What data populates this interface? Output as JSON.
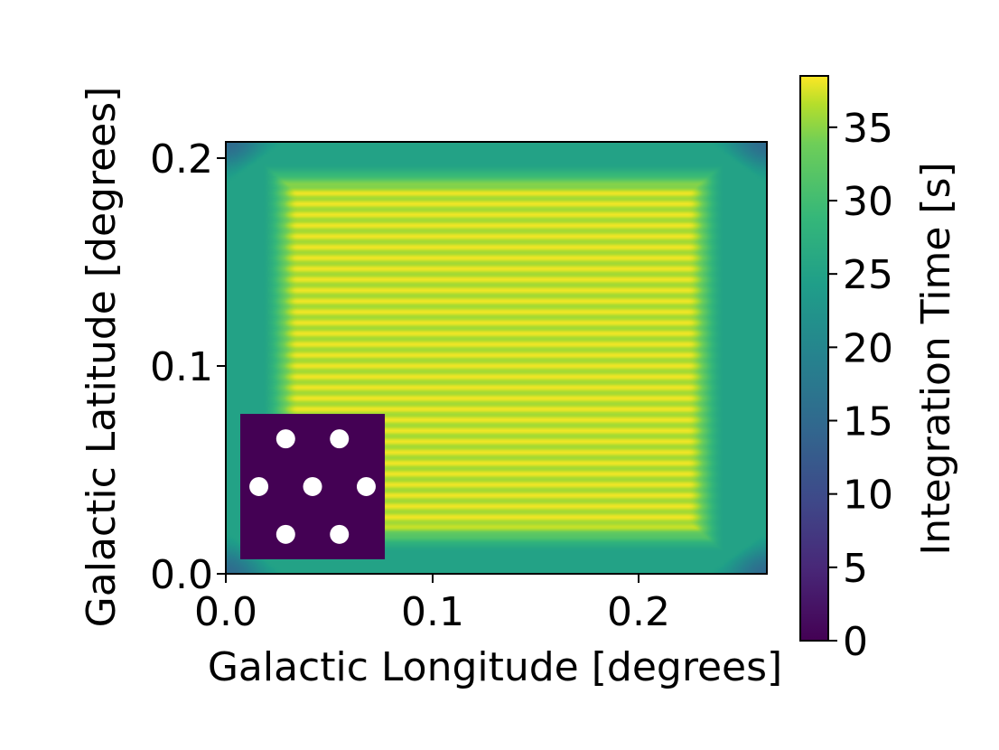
{
  "chart_data": {
    "type": "heatmap",
    "xlabel": "Galactic Longitude [degrees]",
    "ylabel": "Galactic Latitude [degrees]",
    "xlim": [
      0.0,
      0.262
    ],
    "ylim": [
      0.0,
      0.208
    ],
    "x_ticks": [
      0.0,
      0.1,
      0.2
    ],
    "y_ticks": [
      0.0,
      0.1,
      0.2
    ],
    "x_tick_labels": [
      "0.0",
      "0.1",
      "0.2"
    ],
    "y_tick_labels": [
      "0.0",
      "0.1",
      "0.2"
    ],
    "colormap": "viridis",
    "colorbar": {
      "label": "Integration Time [s]",
      "range": [
        0,
        38.5
      ],
      "ticks": [
        0,
        5,
        10,
        15,
        20,
        25,
        30,
        35
      ],
      "tick_labels": [
        "0",
        "5",
        "10",
        "15",
        "20",
        "25",
        "30",
        "35"
      ]
    },
    "field": {
      "plateau_value": 37,
      "plateau_x_range": [
        0.029,
        0.23
      ],
      "plateau_y_range": [
        0.02,
        0.188
      ],
      "edge_value": 25,
      "corner_value": 15,
      "stripe_period_y": 0.0052
    },
    "inset": {
      "x_range": [
        0.007,
        0.077
      ],
      "y_range": [
        0.007,
        0.077
      ],
      "background_value": 0,
      "dots": [
        {
          "x": 0.029,
          "y": 0.065
        },
        {
          "x": 0.055,
          "y": 0.065
        },
        {
          "x": 0.016,
          "y": 0.042
        },
        {
          "x": 0.042,
          "y": 0.042
        },
        {
          "x": 0.068,
          "y": 0.042
        },
        {
          "x": 0.029,
          "y": 0.019
        },
        {
          "x": 0.055,
          "y": 0.019
        }
      ]
    }
  }
}
